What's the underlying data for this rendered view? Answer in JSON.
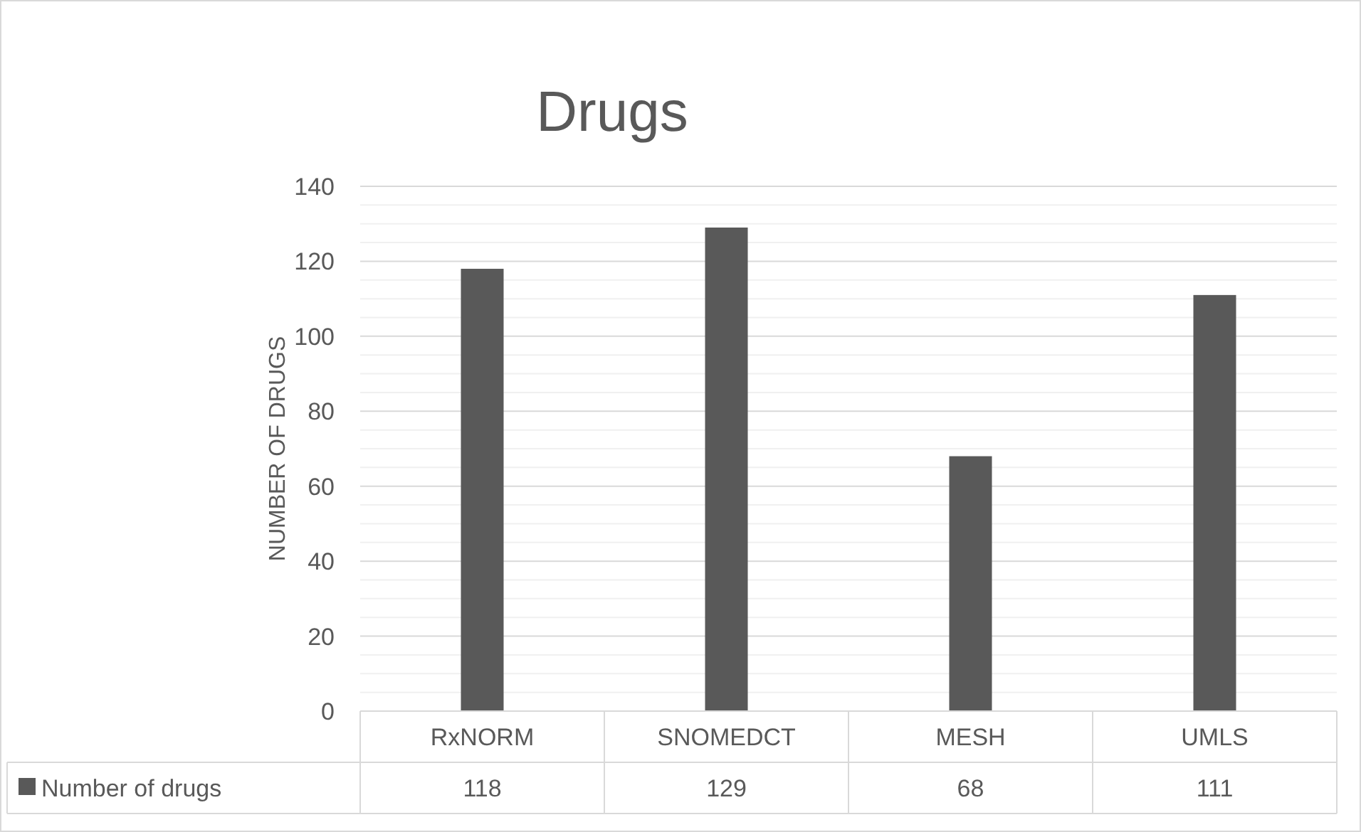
{
  "chart_data": {
    "type": "bar",
    "title": "Drugs",
    "ylabel": "NUMBER OF DRUGS",
    "categories": [
      "RxNORM",
      "SNOMEDCT",
      "MESH",
      "UMLS"
    ],
    "series": [
      {
        "name": "Number of drugs",
        "color": "#595959",
        "values": [
          118,
          129,
          68,
          111
        ]
      }
    ],
    "ylim": [
      0,
      140
    ],
    "yticks": [
      0,
      {
        "value": 5,
        "label": null
      },
      {
        "value": 10,
        "label": null
      },
      {
        "value": 15,
        "label": null
      },
      20,
      {
        "value": 25,
        "label": null
      },
      {
        "value": 30,
        "label": null
      },
      {
        "value": 35,
        "label": null
      },
      40,
      {
        "value": 45,
        "label": null
      },
      {
        "value": 50,
        "label": null
      },
      {
        "value": 55,
        "label": null
      },
      60,
      {
        "value": 65,
        "label": null
      },
      {
        "value": 70,
        "label": null
      },
      {
        "value": 75,
        "label": null
      },
      80,
      {
        "value": 85,
        "label": null
      },
      {
        "value": 90,
        "label": null
      },
      {
        "value": 95,
        "label": null
      },
      100,
      {
        "value": 105,
        "label": null
      },
      {
        "value": 110,
        "label": null
      },
      {
        "value": 115,
        "label": null
      },
      120,
      {
        "value": 125,
        "label": null
      },
      {
        "value": 130,
        "label": null
      },
      {
        "value": 135,
        "label": null
      },
      140
    ],
    "grid": true,
    "legend": "bottom",
    "data_labels": true
  }
}
